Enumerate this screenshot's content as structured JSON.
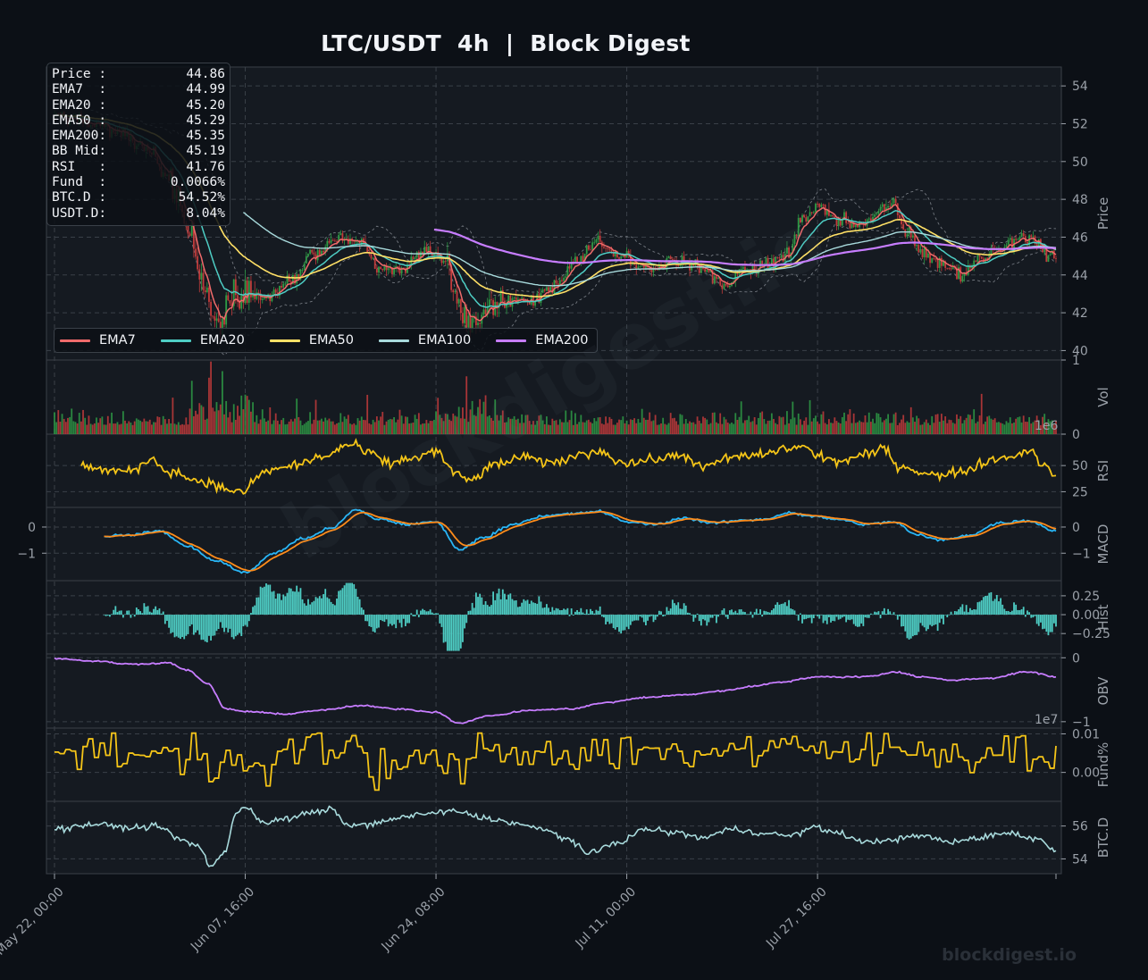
{
  "title": "LTC/USDT  4h  |  Block Digest",
  "colors": {
    "background": "#0c1016",
    "panel": "#151a21",
    "grid": "#3a4048",
    "up": "#2e9b45",
    "down": "#c23b3b",
    "ema7": "#f06b6b",
    "ema20": "#4ecdc4",
    "ema50": "#ffe066",
    "ema100": "#a8dadc",
    "ema200": "#c77dff",
    "rsi": "#f5c518",
    "macd": "#29b6f6",
    "signal": "#ff8c1a",
    "hist": "#4ecdc4",
    "obv": "#c77dff",
    "fund": "#f5c518",
    "btcd": "#a8dadc"
  },
  "info": [
    {
      "label": "Price :",
      "value": "44.86"
    },
    {
      "label": "EMA7  :",
      "value": "44.99"
    },
    {
      "label": "EMA20 :",
      "value": "45.20"
    },
    {
      "label": "EMA50 :",
      "value": "45.29"
    },
    {
      "label": "EMA200:",
      "value": "45.35"
    },
    {
      "label": "BB Mid:",
      "value": "45.19"
    },
    {
      "label": "RSI   :",
      "value": "41.76"
    },
    {
      "label": "Fund  :",
      "value": "0.0066%"
    },
    {
      "label": "BTC.D :",
      "value": "54.52%"
    },
    {
      "label": "USDT.D:",
      "value": "8.04%"
    }
  ],
  "legend": [
    {
      "label": "EMA7",
      "color": "#f06b6b"
    },
    {
      "label": "EMA20",
      "color": "#4ecdc4"
    },
    {
      "label": "EMA50",
      "color": "#ffe066"
    },
    {
      "label": "EMA100",
      "color": "#a8dadc"
    },
    {
      "label": "EMA200",
      "color": "#c77dff"
    }
  ],
  "watermark": "blockdigest.io",
  "footer": "blockdigest.io",
  "chart_data": {
    "type": "line",
    "x_ticks": [
      "May 22, 00:00",
      "Jun 07, 16:00",
      "Jun 24, 08:00",
      "Jul 11, 00:00",
      "Jul 27, 16:00"
    ],
    "grid": true,
    "legend_position": "bottom-left of price panel",
    "panels": [
      {
        "id": "price",
        "ylabel": "Price",
        "ylim": [
          39.5,
          55
        ],
        "ticks": [
          "40",
          "42",
          "44",
          "46",
          "48",
          "50",
          "52",
          "54"
        ],
        "tick_values": [
          40,
          42,
          44,
          46,
          48,
          50,
          52,
          54
        ],
        "anchors": [
          [
            0,
            52.4
          ],
          [
            20,
            52.0
          ],
          [
            35,
            51.5
          ],
          [
            50,
            50.6
          ],
          [
            60,
            49.0
          ],
          [
            70,
            46.5
          ],
          [
            78,
            43.5
          ],
          [
            85,
            41.8
          ],
          [
            95,
            43.0
          ],
          [
            110,
            42.8
          ],
          [
            125,
            43.8
          ],
          [
            135,
            45.2
          ],
          [
            150,
            46.0
          ],
          [
            160,
            45.7
          ],
          [
            170,
            44.5
          ],
          [
            180,
            44.3
          ],
          [
            195,
            45.4
          ],
          [
            205,
            44.8
          ],
          [
            212,
            42.5
          ],
          [
            220,
            41.5
          ],
          [
            228,
            42.5
          ],
          [
            240,
            42.8
          ],
          [
            250,
            42.6
          ],
          [
            262,
            43.4
          ],
          [
            275,
            44.8
          ],
          [
            285,
            45.8
          ],
          [
            295,
            45.0
          ],
          [
            310,
            44.2
          ],
          [
            325,
            44.8
          ],
          [
            340,
            44.4
          ],
          [
            350,
            43.4
          ],
          [
            360,
            44.2
          ],
          [
            375,
            44.6
          ],
          [
            385,
            45.2
          ],
          [
            392,
            47.0
          ],
          [
            400,
            47.6
          ],
          [
            410,
            47.0
          ],
          [
            420,
            46.6
          ],
          [
            432,
            47.4
          ],
          [
            440,
            47.8
          ],
          [
            445,
            46.4
          ],
          [
            455,
            45.2
          ],
          [
            465,
            44.4
          ],
          [
            475,
            44.0
          ],
          [
            485,
            44.8
          ],
          [
            495,
            45.3
          ],
          [
            505,
            45.9
          ],
          [
            512,
            46.0
          ],
          [
            520,
            45.1
          ],
          [
            525,
            44.9
          ]
        ],
        "ema_final": {
          "EMA7": 44.99,
          "EMA20": 45.2,
          "EMA50": 45.29,
          "EMA200": 45.35
        }
      },
      {
        "id": "vol",
        "ylabel": "Vol",
        "ylim": [
          0,
          1.0
        ],
        "ticks": [
          "0",
          "1"
        ],
        "tick_values": [
          0,
          1
        ],
        "offset_label": "1e6"
      },
      {
        "id": "rsi",
        "ylabel": "RSI",
        "ylim": [
          10,
          80
        ],
        "ticks": [
          "25",
          "50"
        ],
        "tick_values": [
          25,
          50
        ],
        "anchors": [
          [
            14,
            50
          ],
          [
            25,
            46
          ],
          [
            40,
            44
          ],
          [
            50,
            56
          ],
          [
            60,
            45
          ],
          [
            75,
            36
          ],
          [
            90,
            28
          ],
          [
            98,
            24
          ],
          [
            110,
            44
          ],
          [
            125,
            50
          ],
          [
            140,
            58
          ],
          [
            155,
            70
          ],
          [
            165,
            62
          ],
          [
            175,
            52
          ],
          [
            190,
            58
          ],
          [
            200,
            64
          ],
          [
            210,
            42
          ],
          [
            218,
            36
          ],
          [
            230,
            50
          ],
          [
            245,
            58
          ],
          [
            260,
            52
          ],
          [
            275,
            60
          ],
          [
            285,
            64
          ],
          [
            300,
            52
          ],
          [
            315,
            56
          ],
          [
            330,
            60
          ],
          [
            340,
            48
          ],
          [
            355,
            58
          ],
          [
            370,
            60
          ],
          [
            382,
            66
          ],
          [
            392,
            68
          ],
          [
            402,
            58
          ],
          [
            412,
            54
          ],
          [
            425,
            60
          ],
          [
            435,
            66
          ],
          [
            442,
            50
          ],
          [
            455,
            44
          ],
          [
            465,
            40
          ],
          [
            478,
            46
          ],
          [
            492,
            56
          ],
          [
            505,
            60
          ],
          [
            512,
            66
          ],
          [
            518,
            50
          ],
          [
            525,
            42
          ]
        ]
      },
      {
        "id": "macd",
        "ylabel": "MACD",
        "ylim": [
          -2.05,
          0.75
        ],
        "ticks": [
          "−1",
          "0"
        ],
        "tick_values": [
          -1,
          0
        ],
        "anchors": [
          [
            26,
            -0.35
          ],
          [
            40,
            -0.3
          ],
          [
            55,
            -0.15
          ],
          [
            70,
            -0.75
          ],
          [
            85,
            -1.3
          ],
          [
            100,
            -1.75
          ],
          [
            115,
            -1.0
          ],
          [
            130,
            -0.45
          ],
          [
            145,
            -0.05
          ],
          [
            158,
            0.65
          ],
          [
            170,
            0.3
          ],
          [
            185,
            0.1
          ],
          [
            200,
            0.2
          ],
          [
            212,
            -0.85
          ],
          [
            225,
            -0.4
          ],
          [
            240,
            0.1
          ],
          [
            255,
            0.4
          ],
          [
            270,
            0.5
          ],
          [
            285,
            0.6
          ],
          [
            300,
            0.2
          ],
          [
            315,
            0.1
          ],
          [
            330,
            0.35
          ],
          [
            345,
            0.15
          ],
          [
            360,
            0.25
          ],
          [
            372,
            0.3
          ],
          [
            385,
            0.55
          ],
          [
            398,
            0.4
          ],
          [
            410,
            0.3
          ],
          [
            425,
            0.1
          ],
          [
            440,
            0.2
          ],
          [
            452,
            -0.3
          ],
          [
            465,
            -0.5
          ],
          [
            480,
            -0.3
          ],
          [
            495,
            0.15
          ],
          [
            510,
            0.25
          ],
          [
            525,
            -0.15
          ]
        ]
      },
      {
        "id": "hist",
        "ylabel": "Hist",
        "ylim": [
          -0.52,
          0.45
        ],
        "ticks": [
          "−0.25",
          "0.00",
          "0.25"
        ],
        "tick_values": [
          -0.25,
          0,
          0.25
        ]
      },
      {
        "id": "obv",
        "ylabel": "OBV",
        "ylim": [
          -1.1,
          0.06
        ],
        "ticks": [
          "−1",
          "0"
        ],
        "tick_values": [
          -1,
          0
        ],
        "offset_label": "1e7",
        "anchors": [
          [
            0,
            -0.01
          ],
          [
            20,
            -0.05
          ],
          [
            40,
            -0.1
          ],
          [
            60,
            -0.08
          ],
          [
            70,
            -0.2
          ],
          [
            80,
            -0.4
          ],
          [
            90,
            -0.8
          ],
          [
            100,
            -0.84
          ],
          [
            120,
            -0.88
          ],
          [
            140,
            -0.82
          ],
          [
            160,
            -0.75
          ],
          [
            180,
            -0.8
          ],
          [
            200,
            -0.85
          ],
          [
            212,
            -1.02
          ],
          [
            230,
            -0.9
          ],
          [
            250,
            -0.82
          ],
          [
            270,
            -0.8
          ],
          [
            290,
            -0.7
          ],
          [
            310,
            -0.62
          ],
          [
            330,
            -0.58
          ],
          [
            350,
            -0.52
          ],
          [
            365,
            -0.45
          ],
          [
            380,
            -0.38
          ],
          [
            400,
            -0.3
          ],
          [
            420,
            -0.3
          ],
          [
            430,
            -0.28
          ],
          [
            440,
            -0.22
          ],
          [
            455,
            -0.3
          ],
          [
            470,
            -0.35
          ],
          [
            490,
            -0.32
          ],
          [
            510,
            -0.22
          ],
          [
            525,
            -0.3
          ]
        ]
      },
      {
        "id": "fund",
        "ylabel": "Fund%",
        "ylim": [
          -0.0075,
          0.0115
        ],
        "ticks": [
          "0.00",
          "0.01"
        ],
        "tick_values": [
          0,
          0.01
        ],
        "center": 0.0055,
        "amp": 0.0045
      },
      {
        "id": "btcd",
        "ylabel": "BTC.D",
        "ylim": [
          53.1,
          57.5
        ],
        "ticks": [
          "54",
          "56"
        ],
        "tick_values": [
          54,
          56
        ],
        "anchors": [
          [
            0,
            55.8
          ],
          [
            20,
            56.1
          ],
          [
            40,
            55.9
          ],
          [
            55,
            56.0
          ],
          [
            65,
            55.2
          ],
          [
            75,
            54.8
          ],
          [
            82,
            53.6
          ],
          [
            90,
            54.5
          ],
          [
            95,
            56.8
          ],
          [
            100,
            57.2
          ],
          [
            110,
            56.2
          ],
          [
            120,
            56.4
          ],
          [
            135,
            56.8
          ],
          [
            145,
            57.0
          ],
          [
            155,
            56.0
          ],
          [
            170,
            56.2
          ],
          [
            185,
            56.6
          ],
          [
            200,
            56.8
          ],
          [
            210,
            56.9
          ],
          [
            225,
            56.5
          ],
          [
            240,
            56.2
          ],
          [
            255,
            55.8
          ],
          [
            270,
            55.2
          ],
          [
            280,
            54.3
          ],
          [
            295,
            55.0
          ],
          [
            310,
            55.8
          ],
          [
            325,
            55.6
          ],
          [
            340,
            55.3
          ],
          [
            355,
            55.8
          ],
          [
            370,
            55.6
          ],
          [
            385,
            55.4
          ],
          [
            398,
            55.9
          ],
          [
            410,
            55.6
          ],
          [
            425,
            55.0
          ],
          [
            440,
            55.2
          ],
          [
            455,
            55.4
          ],
          [
            470,
            55.0
          ],
          [
            485,
            55.3
          ],
          [
            500,
            55.6
          ],
          [
            515,
            55.2
          ],
          [
            525,
            54.5
          ]
        ]
      }
    ]
  }
}
